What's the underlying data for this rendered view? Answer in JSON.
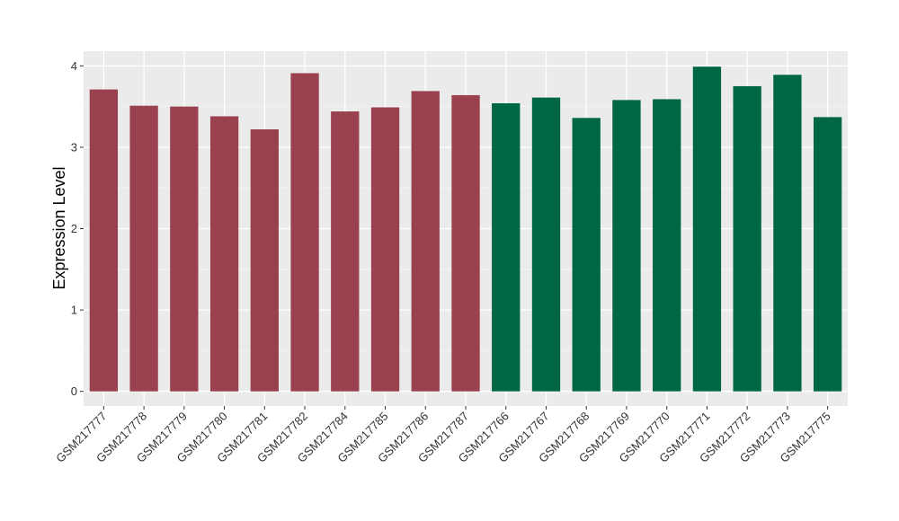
{
  "chart_data": {
    "type": "bar",
    "title": "",
    "xlabel": "",
    "ylabel": "Expression Level",
    "ylim": [
      -0.18,
      4.18
    ],
    "yticks": [
      0,
      1,
      2,
      3,
      4
    ],
    "grid": true,
    "legend": "none",
    "colors": {
      "panel_background": "#EBEBEB",
      "grid_major": "#FFFFFF",
      "group_a": "#9A4150",
      "group_b": "#006744"
    },
    "categories": [
      "GSM217777",
      "GSM217778",
      "GSM217779",
      "GSM217780",
      "GSM217781",
      "GSM217782",
      "GSM217784",
      "GSM217785",
      "GSM217786",
      "GSM217787",
      "GSM217766",
      "GSM217767",
      "GSM217768",
      "GSM217769",
      "GSM217770",
      "GSM217771",
      "GSM217772",
      "GSM217773",
      "GSM217775"
    ],
    "values": [
      3.71,
      3.51,
      3.5,
      3.38,
      3.22,
      3.91,
      3.44,
      3.49,
      3.69,
      3.64,
      3.54,
      3.61,
      3.36,
      3.58,
      3.59,
      3.99,
      3.75,
      3.89,
      3.37
    ],
    "bar_groups": [
      "group_a",
      "group_a",
      "group_a",
      "group_a",
      "group_a",
      "group_a",
      "group_a",
      "group_a",
      "group_a",
      "group_a",
      "group_b",
      "group_b",
      "group_b",
      "group_b",
      "group_b",
      "group_b",
      "group_b",
      "group_b",
      "group_b"
    ]
  }
}
